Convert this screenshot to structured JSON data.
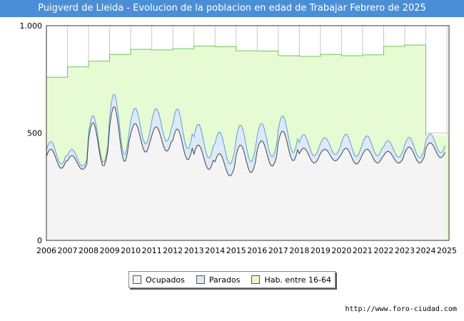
{
  "colors": {
    "title_bg": "#4a8fd6",
    "ocupados_fill": "#f4f4f4",
    "parados_fill": "#dde9f8",
    "hab_fill": "#e6fbd3",
    "hab_line": "#6ec95b",
    "parados_line": "#5d9ed6",
    "ocupados_line": "#444444",
    "grid": "#c8c8c8"
  },
  "chart_data": {
    "type": "area",
    "title": "Puigverd de Lleida - Evolucion de la poblacion en edad de Trabajar Febrero de 2025",
    "xlabel": "",
    "ylabel": "",
    "x_range": [
      2006.0,
      2025.1
    ],
    "ylim": [
      0,
      1000
    ],
    "y_ticks": [
      {
        "value": 0,
        "label": "0"
      },
      {
        "value": 500,
        "label": "500"
      },
      {
        "value": 1000,
        "label": "1.000"
      }
    ],
    "x_ticks": [
      "2006",
      "2007",
      "2008",
      "2009",
      "2010",
      "2011",
      "2012",
      "2013",
      "2014",
      "2015",
      "2016",
      "2017",
      "2018",
      "2019",
      "2020",
      "2021",
      "2022",
      "2023",
      "2024",
      "2025"
    ],
    "grid": true,
    "legend": [
      "Ocupados",
      "Parados",
      "Hab. entre 16-64"
    ],
    "legend_position": "bottom",
    "hab_entre_16_64": [
      {
        "year": 2006,
        "value": 760
      },
      {
        "year": 2007,
        "value": 808
      },
      {
        "year": 2008,
        "value": 835
      },
      {
        "year": 2009,
        "value": 866
      },
      {
        "year": 2010,
        "value": 890
      },
      {
        "year": 2011,
        "value": 887
      },
      {
        "year": 2012,
        "value": 893
      },
      {
        "year": 2013,
        "value": 905
      },
      {
        "year": 2014,
        "value": 902
      },
      {
        "year": 2015,
        "value": 883
      },
      {
        "year": 2016,
        "value": 882
      },
      {
        "year": 2017,
        "value": 860
      },
      {
        "year": 2018,
        "value": 857
      },
      {
        "year": 2019,
        "value": 866
      },
      {
        "year": 2020,
        "value": 860
      },
      {
        "year": 2021,
        "value": 864
      },
      {
        "year": 2022,
        "value": 904
      },
      {
        "year": 2023,
        "value": 910
      },
      {
        "year": 2024,
        "value": 490
      }
    ],
    "ocupados_annual": [
      {
        "year": 2006,
        "min": 335,
        "max": 425
      },
      {
        "year": 2007,
        "min": 330,
        "max": 395
      },
      {
        "year": 2008,
        "min": 345,
        "max": 550
      },
      {
        "year": 2009,
        "min": 365,
        "max": 625
      },
      {
        "year": 2010,
        "min": 410,
        "max": 545
      },
      {
        "year": 2011,
        "min": 415,
        "max": 530
      },
      {
        "year": 2012,
        "min": 375,
        "max": 520
      },
      {
        "year": 2013,
        "min": 330,
        "max": 445
      },
      {
        "year": 2014,
        "min": 300,
        "max": 405
      },
      {
        "year": 2015,
        "min": 315,
        "max": 445
      },
      {
        "year": 2016,
        "min": 345,
        "max": 465
      },
      {
        "year": 2017,
        "min": 370,
        "max": 510
      },
      {
        "year": 2018,
        "min": 360,
        "max": 430
      },
      {
        "year": 2019,
        "min": 370,
        "max": 425
      },
      {
        "year": 2020,
        "min": 355,
        "max": 430
      },
      {
        "year": 2021,
        "min": 360,
        "max": 425
      },
      {
        "year": 2022,
        "min": 360,
        "max": 415
      },
      {
        "year": 2023,
        "min": 360,
        "max": 435
      },
      {
        "year": 2024,
        "min": 385,
        "max": 455
      }
    ],
    "parados_annual": [
      {
        "year": 2006,
        "value": 28
      },
      {
        "year": 2007,
        "value": 22
      },
      {
        "year": 2008,
        "value": 25
      },
      {
        "year": 2009,
        "value": 45
      },
      {
        "year": 2010,
        "value": 55
      },
      {
        "year": 2011,
        "value": 65
      },
      {
        "year": 2012,
        "value": 72
      },
      {
        "year": 2013,
        "value": 75
      },
      {
        "year": 2014,
        "value": 78
      },
      {
        "year": 2015,
        "value": 72
      },
      {
        "year": 2016,
        "value": 62
      },
      {
        "year": 2017,
        "value": 55
      },
      {
        "year": 2018,
        "value": 48
      },
      {
        "year": 2019,
        "value": 42
      },
      {
        "year": 2020,
        "value": 50
      },
      {
        "year": 2021,
        "value": 48
      },
      {
        "year": 2022,
        "value": 38
      },
      {
        "year": 2023,
        "value": 35
      },
      {
        "year": 2024,
        "value": 32
      }
    ]
  },
  "legend_labels": {
    "ocupados": "Ocupados",
    "parados": "Parados",
    "hab": "Hab. entre 16-64"
  },
  "source": "http://www.foro-ciudad.com"
}
